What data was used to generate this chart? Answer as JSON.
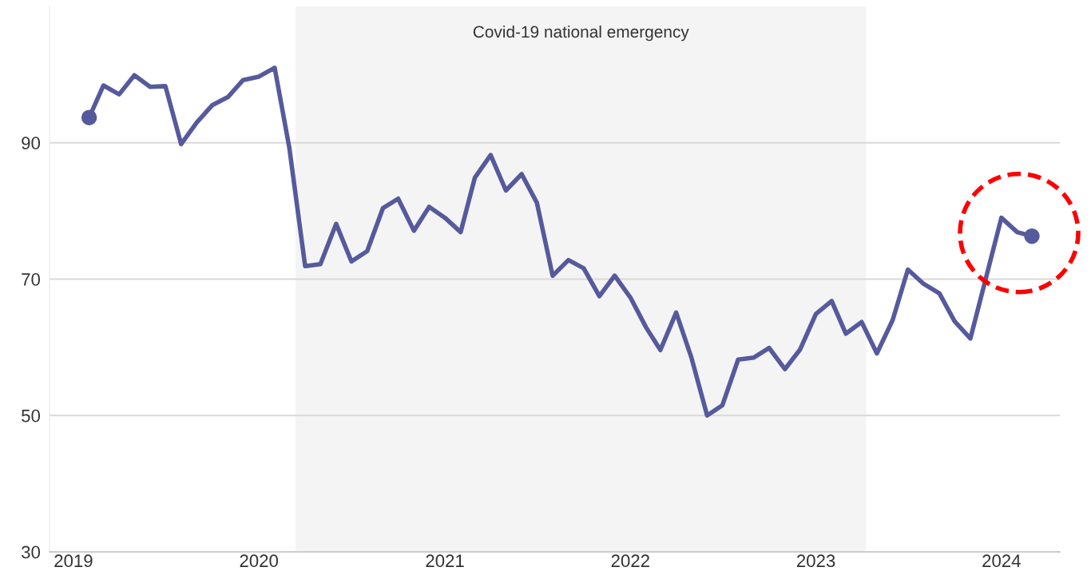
{
  "chart_data": {
    "type": "line",
    "x": [
      "2019-02",
      "2019-03",
      "2019-04",
      "2019-05",
      "2019-06",
      "2019-07",
      "2019-08",
      "2019-09",
      "2019-10",
      "2019-11",
      "2019-12",
      "2020-01",
      "2020-02",
      "2020-03",
      "2020-04",
      "2020-05",
      "2020-06",
      "2020-07",
      "2020-08",
      "2020-09",
      "2020-10",
      "2020-11",
      "2020-12",
      "2021-01",
      "2021-02",
      "2021-03",
      "2021-04",
      "2021-05",
      "2021-06",
      "2021-07",
      "2021-08",
      "2021-09",
      "2021-10",
      "2021-11",
      "2021-12",
      "2022-01",
      "2022-02",
      "2022-03",
      "2022-04",
      "2022-05",
      "2022-06",
      "2022-07",
      "2022-08",
      "2022-09",
      "2022-10",
      "2022-11",
      "2022-12",
      "2023-01",
      "2023-02",
      "2023-03",
      "2023-04",
      "2023-05",
      "2023-06",
      "2023-07",
      "2023-08",
      "2023-09",
      "2023-10",
      "2023-11",
      "2023-12",
      "2024-01",
      "2024-02",
      "2024-03"
    ],
    "series": [
      {
        "color": "#565a9c",
        "values": [
          93.7,
          98.4,
          97.1,
          99.9,
          98.2,
          98.3,
          89.8,
          93.0,
          95.5,
          96.7,
          99.2,
          99.7,
          101.0,
          89.2,
          71.9,
          72.2,
          78.1,
          72.6,
          74.1,
          80.4,
          81.8,
          77.1,
          80.6,
          79.0,
          76.9,
          84.9,
          88.2,
          83.0,
          85.4,
          81.2,
          70.5,
          72.8,
          71.6,
          67.5,
          70.5,
          67.3,
          62.9,
          59.6,
          65.1,
          58.5,
          50.0,
          51.5,
          58.2,
          58.5,
          59.9,
          56.8,
          59.7,
          64.9,
          66.8,
          62.0,
          63.7,
          59.1,
          64.0,
          71.4,
          69.3,
          67.9,
          63.8,
          61.3,
          70.0,
          79.0,
          76.9,
          76.3
        ]
      }
    ],
    "xlim": [
      "2018-11-15",
      "2024-04-25"
    ],
    "xticks": [
      {
        "value": "2019-01-01",
        "label": "2019"
      },
      {
        "value": "2020-01-01",
        "label": "2020"
      },
      {
        "value": "2021-01-01",
        "label": "2021"
      },
      {
        "value": "2022-01-01",
        "label": "2022"
      },
      {
        "value": "2023-01-01",
        "label": "2023"
      },
      {
        "value": "2024-01-01",
        "label": "2024"
      }
    ],
    "ylim": [
      30,
      110
    ],
    "yticks": [
      30,
      50,
      70,
      90
    ],
    "grid": "y",
    "bands": [
      {
        "axis": "x",
        "from": "2020-03-13",
        "to": "2023-04-10",
        "label": "Covid-19 national emergency",
        "color": "#f4f4f4"
      }
    ],
    "line_style": "solid"
  }
}
